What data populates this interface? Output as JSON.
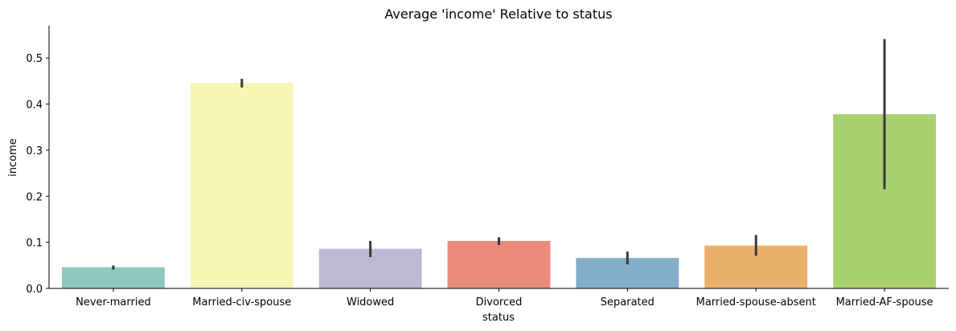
{
  "chart_data": {
    "type": "bar",
    "title": "Average 'income' Relative to status",
    "xlabel": "status",
    "ylabel": "income",
    "categories": [
      "Never-married",
      "Married-civ-spouse",
      "Widowed",
      "Divorced",
      "Separated",
      "Married-spouse-absent",
      "Married-AF-spouse"
    ],
    "values": [
      0.046,
      0.446,
      0.086,
      0.103,
      0.066,
      0.093,
      0.378
    ],
    "error_low": [
      0.041,
      0.436,
      0.068,
      0.094,
      0.052,
      0.071,
      0.215
    ],
    "error_high": [
      0.05,
      0.455,
      0.103,
      0.111,
      0.08,
      0.116,
      0.541
    ],
    "colors": [
      "#8dc9bd",
      "#f6f6b4",
      "#bdb8d6",
      "#ea8a7d",
      "#84adca",
      "#ecb06d",
      "#aad170"
    ],
    "error_color": "#3a3a3a",
    "ylim": [
      0,
      0.57
    ],
    "yticks": [
      0.0,
      0.1,
      0.2,
      0.3,
      0.4,
      0.5
    ],
    "ytick_labels": [
      "0.0",
      "0.1",
      "0.2",
      "0.3",
      "0.4",
      "0.5"
    ],
    "grid": false
  }
}
